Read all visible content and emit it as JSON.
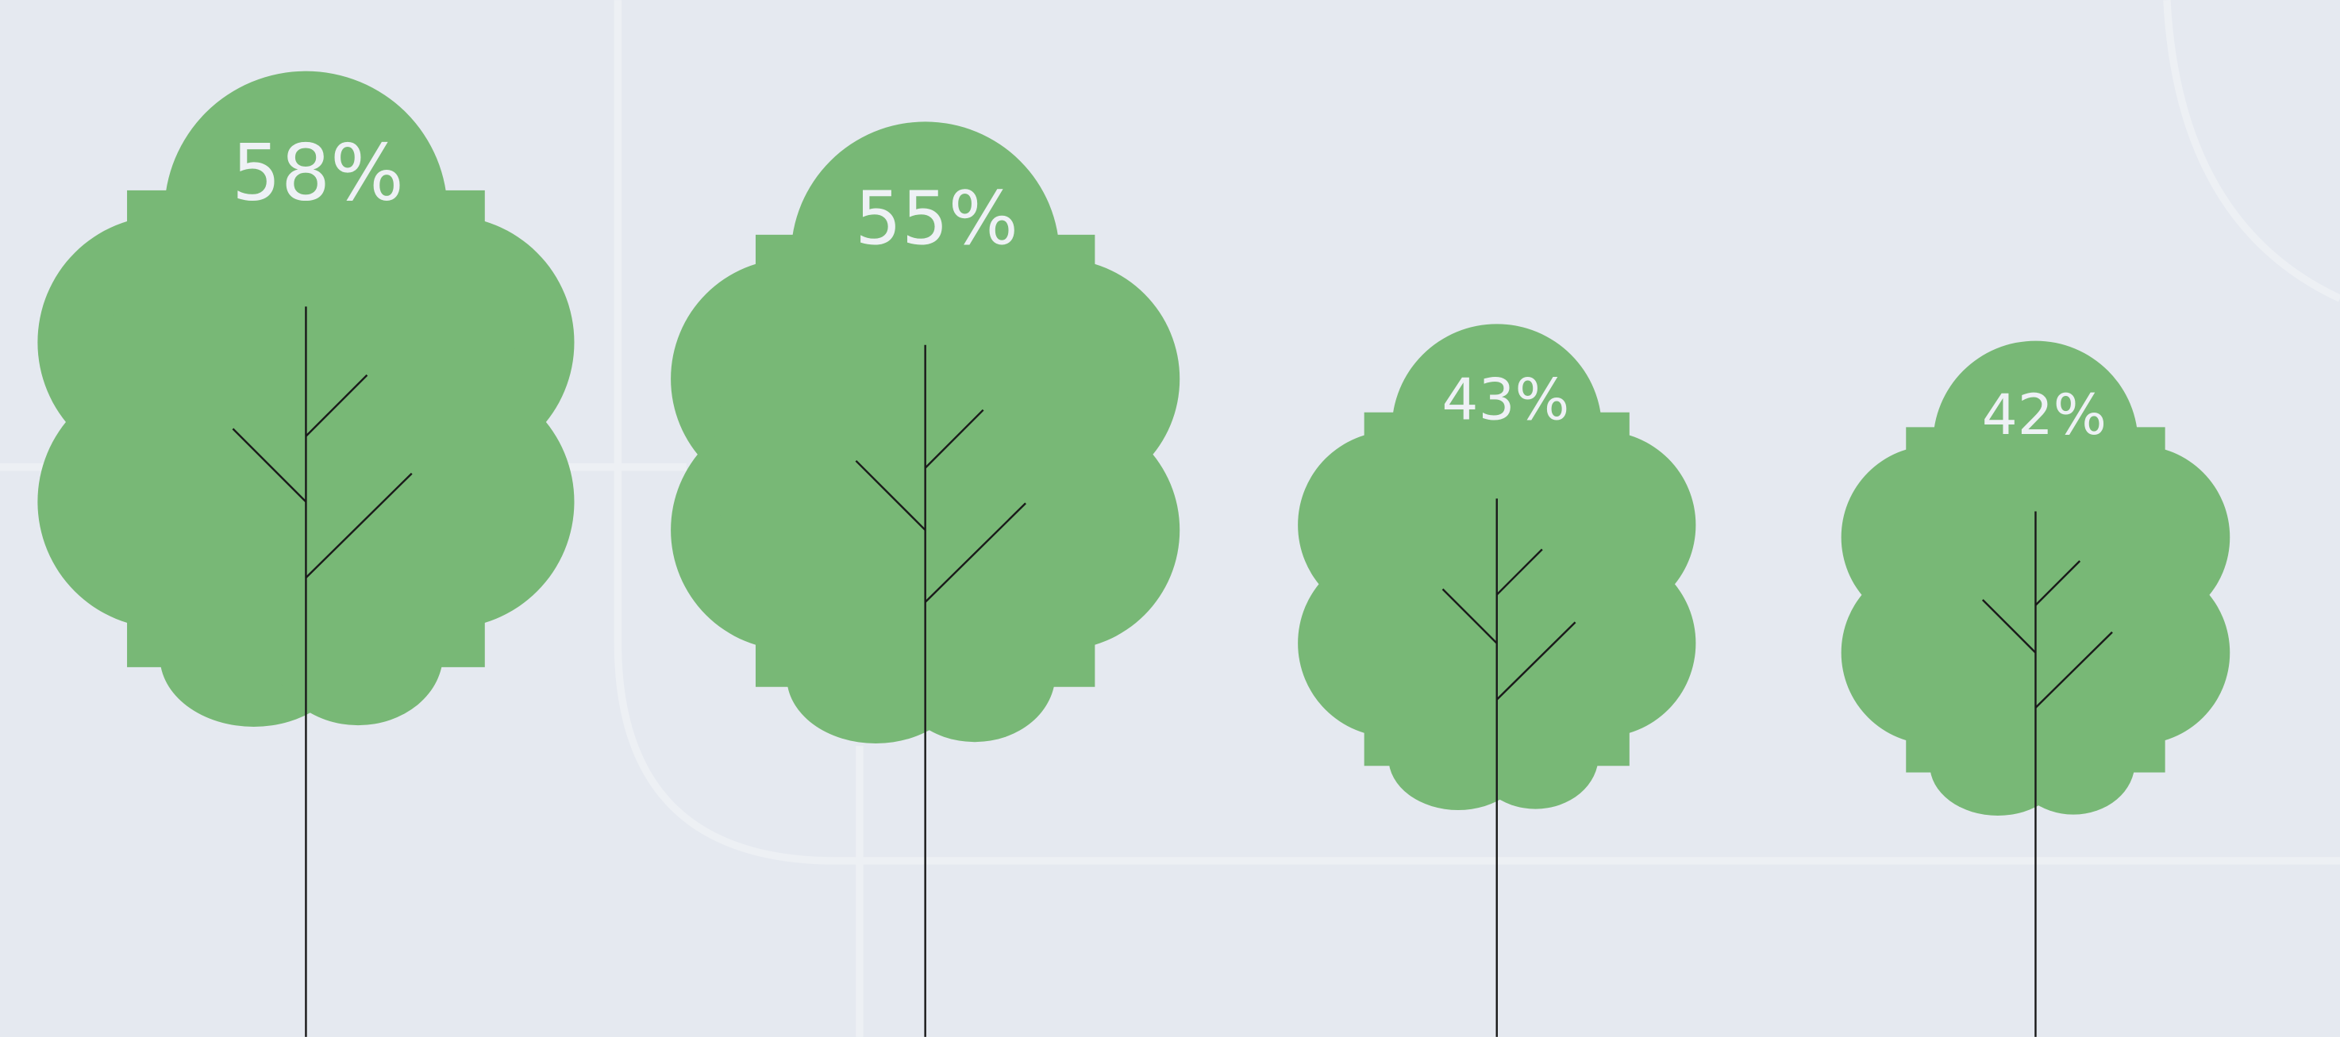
{
  "chart_data": {
    "type": "pictorial-tree",
    "values": [
      58,
      55,
      43,
      42
    ],
    "value_labels": [
      "58%",
      "55%",
      "43%",
      "42%"
    ],
    "color": "#78b876"
  }
}
